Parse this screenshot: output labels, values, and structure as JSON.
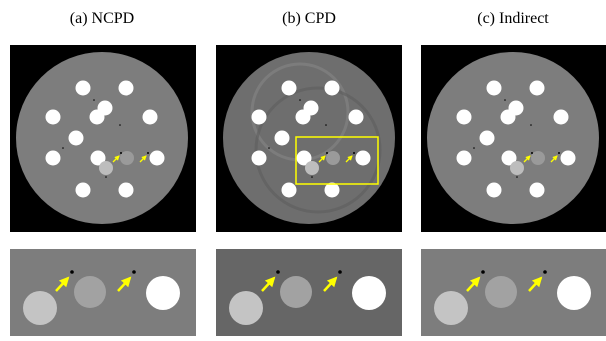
{
  "figure": {
    "captions": [
      "(a) NCPD",
      "(b) CPD",
      "(c) Indirect"
    ]
  }
}
